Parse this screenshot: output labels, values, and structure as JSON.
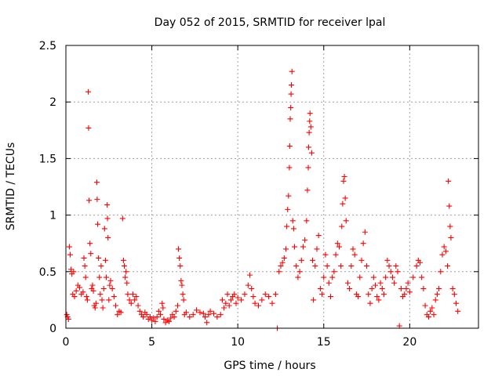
{
  "chart_data": {
    "type": "scatter",
    "title": "Day 052 of 2015, SRMTID for receiver lpal",
    "xlabel": "GPS time / hours",
    "ylabel": "SRMTID / TECUs",
    "xlim": [
      0,
      24
    ],
    "ylim": [
      0,
      2.5
    ],
    "x_ticks": [
      0,
      5,
      10,
      15,
      20
    ],
    "x_tick_labels": [
      "0",
      "5",
      "10",
      "15",
      "20"
    ],
    "y_ticks": [
      0,
      0.5,
      1,
      1.5,
      2,
      2.5
    ],
    "y_tick_labels": [
      "0",
      "0.5",
      "1",
      "1.5",
      "2",
      "2.5"
    ],
    "grid": true,
    "marker": "plus",
    "series": [
      {
        "name": "SRMTID",
        "color": "#ff0000",
        "points": [
          [
            0.05,
            0.12
          ],
          [
            0.1,
            0.1
          ],
          [
            0.15,
            0.08
          ],
          [
            0.2,
            0.72
          ],
          [
            0.25,
            0.65
          ],
          [
            0.3,
            0.52
          ],
          [
            0.35,
            0.48
          ],
          [
            0.4,
            0.3
          ],
          [
            0.45,
            0.5
          ],
          [
            0.5,
            0.28
          ],
          [
            0.6,
            0.33
          ],
          [
            0.7,
            0.38
          ],
          [
            0.8,
            0.36
          ],
          [
            0.9,
            0.3
          ],
          [
            1.0,
            0.32
          ],
          [
            1.05,
            0.62
          ],
          [
            1.1,
            0.55
          ],
          [
            1.15,
            0.45
          ],
          [
            1.2,
            0.28
          ],
          [
            1.25,
            0.25
          ],
          [
            1.3,
            2.09
          ],
          [
            1.32,
            1.77
          ],
          [
            1.35,
            1.13
          ],
          [
            1.4,
            0.75
          ],
          [
            1.45,
            0.66
          ],
          [
            1.5,
            0.35
          ],
          [
            1.55,
            0.38
          ],
          [
            1.6,
            0.33
          ],
          [
            1.65,
            0.2
          ],
          [
            1.7,
            0.18
          ],
          [
            1.75,
            0.22
          ],
          [
            1.8,
            1.29
          ],
          [
            1.82,
            1.14
          ],
          [
            1.85,
            0.92
          ],
          [
            1.9,
            0.62
          ],
          [
            1.95,
            0.45
          ],
          [
            2.0,
            0.3
          ],
          [
            2.05,
            0.55
          ],
          [
            2.1,
            0.25
          ],
          [
            2.15,
            0.18
          ],
          [
            2.2,
            0.35
          ],
          [
            2.25,
            0.88
          ],
          [
            2.3,
            0.6
          ],
          [
            2.35,
            0.45
          ],
          [
            2.4,
            1.09
          ],
          [
            2.42,
            0.97
          ],
          [
            2.45,
            0.8
          ],
          [
            2.5,
            0.25
          ],
          [
            2.55,
            0.38
          ],
          [
            2.6,
            0.42
          ],
          [
            2.7,
            0.35
          ],
          [
            2.8,
            0.28
          ],
          [
            2.9,
            0.2
          ],
          [
            3.0,
            0.12
          ],
          [
            3.1,
            0.15
          ],
          [
            3.2,
            0.14
          ],
          [
            3.3,
            0.97
          ],
          [
            3.35,
            0.6
          ],
          [
            3.4,
            0.55
          ],
          [
            3.45,
            0.45
          ],
          [
            3.5,
            0.5
          ],
          [
            3.55,
            0.4
          ],
          [
            3.6,
            0.3
          ],
          [
            3.7,
            0.25
          ],
          [
            3.8,
            0.22
          ],
          [
            3.9,
            0.3
          ],
          [
            4.0,
            0.25
          ],
          [
            4.1,
            0.28
          ],
          [
            4.2,
            0.2
          ],
          [
            4.3,
            0.15
          ],
          [
            4.4,
            0.12
          ],
          [
            4.5,
            0.1
          ],
          [
            4.6,
            0.14
          ],
          [
            4.7,
            0.12
          ],
          [
            4.8,
            0.08
          ],
          [
            4.9,
            0.1
          ],
          [
            5.0,
            0.07
          ],
          [
            5.1,
            0.09
          ],
          [
            5.2,
            0.06
          ],
          [
            5.3,
            0.1
          ],
          [
            5.4,
            0.15
          ],
          [
            5.5,
            0.12
          ],
          [
            5.6,
            0.22
          ],
          [
            5.65,
            0.18
          ],
          [
            5.7,
            0.08
          ],
          [
            5.8,
            0.05
          ],
          [
            5.9,
            0.07
          ],
          [
            6.0,
            0.06
          ],
          [
            6.1,
            0.09
          ],
          [
            6.2,
            0.12
          ],
          [
            6.3,
            0.1
          ],
          [
            6.4,
            0.15
          ],
          [
            6.5,
            0.2
          ],
          [
            6.55,
            0.7
          ],
          [
            6.6,
            0.62
          ],
          [
            6.65,
            0.55
          ],
          [
            6.7,
            0.42
          ],
          [
            6.75,
            0.38
          ],
          [
            6.8,
            0.3
          ],
          [
            6.85,
            0.25
          ],
          [
            6.9,
            0.12
          ],
          [
            7.0,
            0.14
          ],
          [
            7.2,
            0.1
          ],
          [
            7.4,
            0.12
          ],
          [
            7.6,
            0.16
          ],
          [
            7.8,
            0.14
          ],
          [
            8.0,
            0.13
          ],
          [
            8.1,
            0.1
          ],
          [
            8.2,
            0.05
          ],
          [
            8.3,
            0.12
          ],
          [
            8.4,
            0.15
          ],
          [
            8.6,
            0.13
          ],
          [
            8.8,
            0.1
          ],
          [
            9.0,
            0.12
          ],
          [
            9.1,
            0.25
          ],
          [
            9.2,
            0.18
          ],
          [
            9.3,
            0.22
          ],
          [
            9.4,
            0.3
          ],
          [
            9.5,
            0.2
          ],
          [
            9.6,
            0.25
          ],
          [
            9.7,
            0.28
          ],
          [
            9.8,
            0.3
          ],
          [
            9.9,
            0.22
          ],
          [
            10.0,
            0.27
          ],
          [
            10.2,
            0.25
          ],
          [
            10.4,
            0.3
          ],
          [
            10.6,
            0.38
          ],
          [
            10.7,
            0.47
          ],
          [
            10.8,
            0.35
          ],
          [
            10.9,
            0.28
          ],
          [
            11.0,
            0.22
          ],
          [
            11.2,
            0.2
          ],
          [
            11.4,
            0.25
          ],
          [
            11.6,
            0.3
          ],
          [
            11.8,
            0.28
          ],
          [
            12.0,
            0.22
          ],
          [
            12.2,
            0.3
          ],
          [
            12.3,
            0.0
          ],
          [
            12.4,
            0.5
          ],
          [
            12.5,
            0.55
          ],
          [
            12.6,
            0.58
          ],
          [
            12.7,
            0.62
          ],
          [
            12.8,
            0.7
          ],
          [
            12.85,
            0.9
          ],
          [
            12.9,
            1.05
          ],
          [
            12.95,
            1.17
          ],
          [
            13.0,
            1.42
          ],
          [
            13.02,
            1.61
          ],
          [
            13.05,
            1.85
          ],
          [
            13.08,
            1.95
          ],
          [
            13.1,
            2.07
          ],
          [
            13.12,
            2.15
          ],
          [
            13.15,
            2.27
          ],
          [
            13.2,
            0.95
          ],
          [
            13.25,
            0.88
          ],
          [
            13.3,
            0.72
          ],
          [
            13.4,
            0.55
          ],
          [
            13.5,
            0.45
          ],
          [
            13.6,
            0.5
          ],
          [
            13.7,
            0.6
          ],
          [
            13.8,
            0.72
          ],
          [
            13.9,
            0.78
          ],
          [
            14.0,
            0.95
          ],
          [
            14.05,
            1.22
          ],
          [
            14.1,
            1.42
          ],
          [
            14.12,
            1.6
          ],
          [
            14.15,
            1.73
          ],
          [
            14.18,
            1.83
          ],
          [
            14.2,
            1.9
          ],
          [
            14.25,
            1.78
          ],
          [
            14.3,
            1.55
          ],
          [
            14.35,
            0.6
          ],
          [
            14.4,
            0.25
          ],
          [
            14.5,
            0.55
          ],
          [
            14.6,
            0.7
          ],
          [
            14.7,
            0.82
          ],
          [
            14.8,
            0.35
          ],
          [
            14.9,
            0.3
          ],
          [
            15.0,
            0.45
          ],
          [
            15.1,
            0.65
          ],
          [
            15.2,
            0.55
          ],
          [
            15.3,
            0.4
          ],
          [
            15.4,
            0.28
          ],
          [
            15.5,
            0.45
          ],
          [
            15.6,
            0.5
          ],
          [
            15.7,
            0.65
          ],
          [
            15.8,
            0.75
          ],
          [
            15.9,
            0.72
          ],
          [
            16.0,
            0.55
          ],
          [
            16.05,
            0.9
          ],
          [
            16.1,
            1.1
          ],
          [
            16.15,
            1.3
          ],
          [
            16.2,
            1.34
          ],
          [
            16.25,
            1.15
          ],
          [
            16.3,
            0.95
          ],
          [
            16.4,
            0.4
          ],
          [
            16.5,
            0.35
          ],
          [
            16.6,
            0.55
          ],
          [
            16.7,
            0.7
          ],
          [
            16.8,
            0.65
          ],
          [
            16.9,
            0.3
          ],
          [
            17.0,
            0.28
          ],
          [
            17.1,
            0.45
          ],
          [
            17.2,
            0.6
          ],
          [
            17.3,
            0.75
          ],
          [
            17.4,
            0.85
          ],
          [
            17.5,
            0.55
          ],
          [
            17.6,
            0.3
          ],
          [
            17.7,
            0.22
          ],
          [
            17.8,
            0.35
          ],
          [
            17.9,
            0.45
          ],
          [
            18.0,
            0.38
          ],
          [
            18.1,
            0.28
          ],
          [
            18.2,
            0.25
          ],
          [
            18.3,
            0.4
          ],
          [
            18.4,
            0.35
          ],
          [
            18.5,
            0.3
          ],
          [
            18.6,
            0.45
          ],
          [
            18.7,
            0.6
          ],
          [
            18.8,
            0.55
          ],
          [
            18.9,
            0.5
          ],
          [
            19.0,
            0.45
          ],
          [
            19.1,
            0.4
          ],
          [
            19.2,
            0.55
          ],
          [
            19.3,
            0.5
          ],
          [
            19.4,
            0.02
          ],
          [
            19.5,
            0.35
          ],
          [
            19.6,
            0.28
          ],
          [
            19.7,
            0.3
          ],
          [
            19.8,
            0.35
          ],
          [
            19.9,
            0.4
          ],
          [
            20.0,
            0.32
          ],
          [
            20.2,
            0.45
          ],
          [
            20.4,
            0.55
          ],
          [
            20.5,
            0.6
          ],
          [
            20.6,
            0.58
          ],
          [
            20.7,
            0.45
          ],
          [
            20.8,
            0.35
          ],
          [
            20.9,
            0.2
          ],
          [
            21.0,
            0.12
          ],
          [
            21.1,
            0.1
          ],
          [
            21.2,
            0.15
          ],
          [
            21.3,
            0.18
          ],
          [
            21.4,
            0.12
          ],
          [
            21.5,
            0.25
          ],
          [
            21.6,
            0.3
          ],
          [
            21.7,
            0.35
          ],
          [
            21.8,
            0.5
          ],
          [
            21.9,
            0.65
          ],
          [
            22.0,
            0.72
          ],
          [
            22.1,
            0.68
          ],
          [
            22.2,
            0.55
          ],
          [
            22.25,
            1.3
          ],
          [
            22.3,
            1.08
          ],
          [
            22.35,
            0.9
          ],
          [
            22.4,
            0.8
          ],
          [
            22.5,
            0.35
          ],
          [
            22.6,
            0.3
          ],
          [
            22.7,
            0.22
          ],
          [
            22.8,
            0.15
          ]
        ]
      }
    ]
  }
}
